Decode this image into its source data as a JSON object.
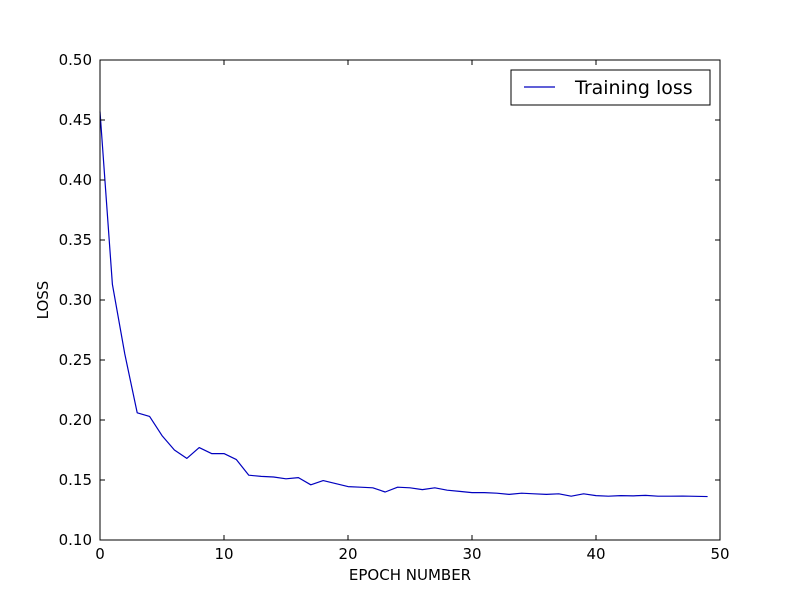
{
  "chart_data": {
    "type": "line",
    "title": "",
    "xlabel": "EPOCH NUMBER",
    "ylabel": "LOSS",
    "xlim": [
      0,
      50
    ],
    "ylim": [
      0.1,
      0.5
    ],
    "x_ticks": [
      0,
      10,
      20,
      30,
      40,
      50
    ],
    "y_ticks": [
      0.1,
      0.15,
      0.2,
      0.25,
      0.3,
      0.35,
      0.4,
      0.45,
      0.5
    ],
    "x_tick_labels": [
      "0",
      "10",
      "20",
      "30",
      "40",
      "50"
    ],
    "y_tick_labels": [
      "0.10",
      "0.15",
      "0.20",
      "0.25",
      "0.30",
      "0.35",
      "0.40",
      "0.45",
      "0.50"
    ],
    "grid": false,
    "legend_position": "top-right",
    "series": [
      {
        "name": "Training loss",
        "color": "#0000bf",
        "x": [
          0,
          1,
          2,
          3,
          4,
          5,
          6,
          7,
          8,
          9,
          10,
          11,
          12,
          13,
          14,
          15,
          16,
          17,
          18,
          19,
          20,
          21,
          22,
          23,
          24,
          25,
          26,
          27,
          28,
          29,
          30,
          31,
          32,
          33,
          34,
          35,
          36,
          37,
          38,
          39,
          40,
          41,
          42,
          43,
          44,
          45,
          46,
          47,
          48,
          49
        ],
        "y": [
          0.457,
          0.313,
          0.255,
          0.206,
          0.203,
          0.187,
          0.175,
          0.168,
          0.177,
          0.172,
          0.172,
          0.167,
          0.154,
          0.153,
          0.1525,
          0.151,
          0.152,
          0.146,
          0.1495,
          0.147,
          0.1445,
          0.144,
          0.1435,
          0.14,
          0.144,
          0.1435,
          0.142,
          0.1435,
          0.1415,
          0.1405,
          0.1395,
          0.1395,
          0.139,
          0.138,
          0.139,
          0.1385,
          0.138,
          0.1385,
          0.1365,
          0.1385,
          0.137,
          0.1365,
          0.137,
          0.1368,
          0.1372,
          0.1365,
          0.1365,
          0.1366,
          0.1364,
          0.1362
        ]
      }
    ]
  }
}
